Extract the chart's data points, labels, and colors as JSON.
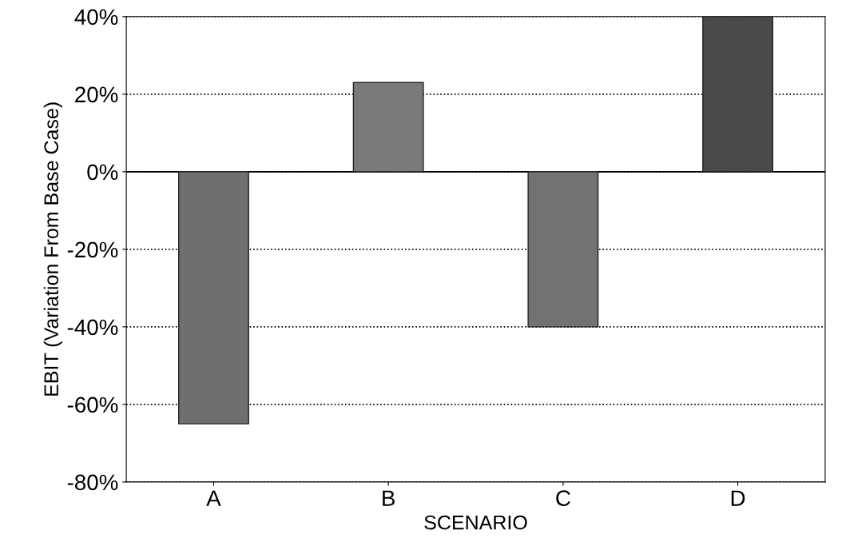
{
  "chart_data": {
    "type": "bar",
    "xlabel": "SCENARIO",
    "ylabel": "EBIT (Variation From Base Case)",
    "categories": [
      "A",
      "B",
      "C",
      "D"
    ],
    "values": [
      -65,
      23,
      -40,
      40
    ],
    "colors": [
      "#6f6f6f",
      "#7a7a7a",
      "#727272",
      "#4a4a4a"
    ],
    "ylim": [
      -80,
      40
    ],
    "yticks": [
      {
        "value": -80,
        "label": "-80%"
      },
      {
        "value": -60,
        "label": "-60%"
      },
      {
        "value": -40,
        "label": "-40%"
      },
      {
        "value": -20,
        "label": "-20%"
      },
      {
        "value": 0,
        "label": "0%"
      },
      {
        "value": 20,
        "label": "20%"
      },
      {
        "value": 40,
        "label": "40%"
      }
    ],
    "grid": "y",
    "line_style": "dotted",
    "ref_lines": [
      {
        "axis": "y",
        "value": 0,
        "label": null,
        "color": "#000000",
        "line_style": "solid"
      }
    ]
  }
}
